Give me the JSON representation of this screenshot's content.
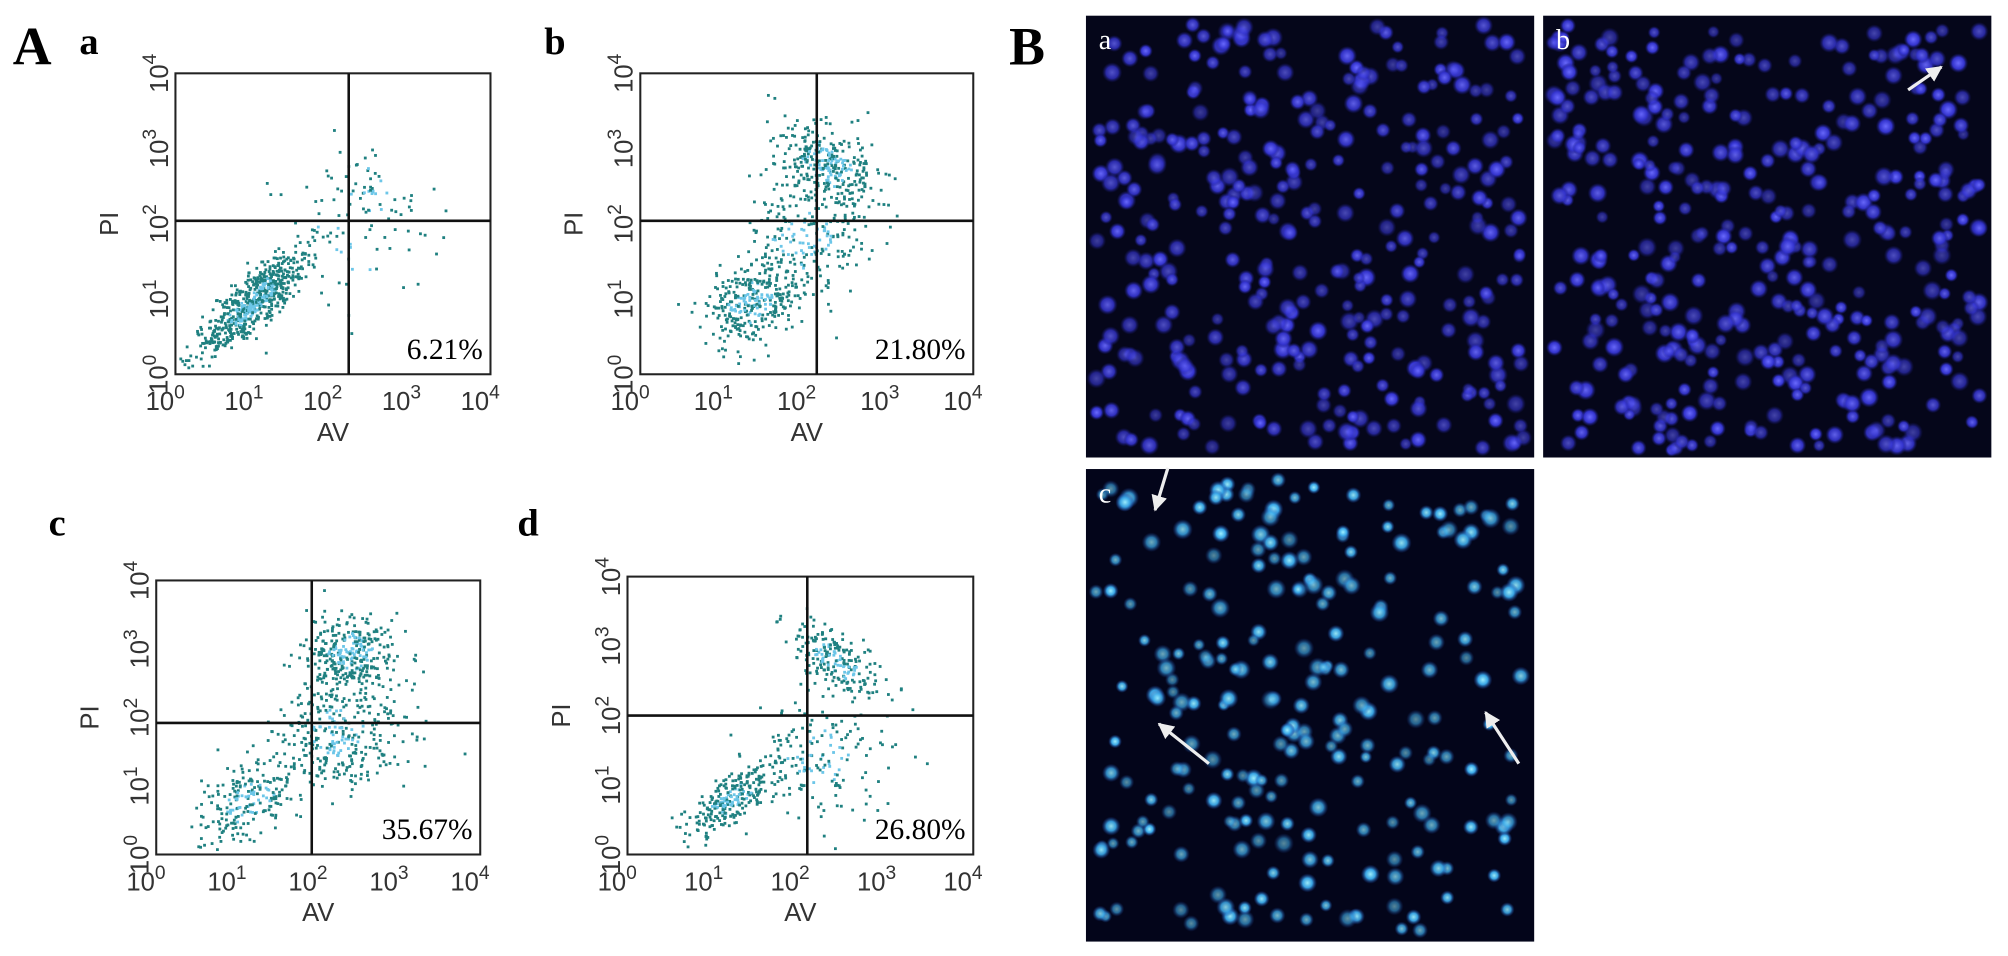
{
  "figure": {
    "panel_labels": [
      "A",
      "B"
    ],
    "axis_base": "10",
    "flow": {
      "x_label": "AV",
      "y_label": "PI",
      "tick_exponents": [
        0,
        1,
        2,
        3,
        4
      ],
      "plots": [
        {
          "label": "a",
          "percent": "6.21%"
        },
        {
          "label": "b",
          "percent": "21.80%"
        },
        {
          "label": "c",
          "percent": "35.67%"
        },
        {
          "label": "d",
          "percent": "26.80%"
        }
      ]
    },
    "micrographs": [
      {
        "label": "a"
      },
      {
        "label": "b"
      },
      {
        "label": "c"
      }
    ]
  }
}
